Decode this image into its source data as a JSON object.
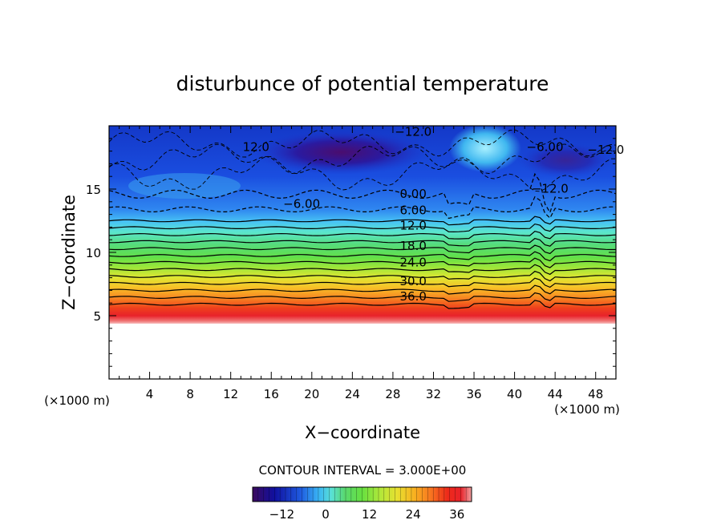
{
  "chart_data": {
    "type": "heatmap",
    "title": "disturbunce of potential temperature",
    "xlabel": "X−coordinate",
    "ylabel": "Z−coordinate",
    "x_unit": "(×1000 m)",
    "z_unit": "(×1000 m)",
    "xlim": [
      0,
      50
    ],
    "ylim": [
      0,
      20
    ],
    "x_ticks": [
      4,
      8,
      12,
      16,
      20,
      24,
      28,
      32,
      36,
      40,
      44,
      48
    ],
    "y_ticks": [
      5,
      10,
      15
    ],
    "contour_interval_text": "CONTOUR INTERVAL = 3.000E+00",
    "colorbar": {
      "range": [
        -20,
        40
      ],
      "ticks": [
        -12,
        0,
        12,
        24,
        36
      ],
      "colors": [
        "#3b0a5e",
        "#1010a0",
        "#1f5be0",
        "#39b4f4",
        "#59e0d6",
        "#59d870",
        "#66e040",
        "#b0e83a",
        "#e8e030",
        "#f8b020",
        "#f77020",
        "#ee2a1a",
        "#e8222a",
        "#f0a0a0"
      ]
    },
    "contour_labels": [
      {
        "x": 30.0,
        "z": 14.3,
        "text": "0.00"
      },
      {
        "x": 30.0,
        "z": 13.0,
        "text": "6.00"
      },
      {
        "x": 30.0,
        "z": 11.8,
        "text": "12.0"
      },
      {
        "x": 30.0,
        "z": 10.2,
        "text": "18.0"
      },
      {
        "x": 30.0,
        "z": 8.9,
        "text": "24.0"
      },
      {
        "x": 30.0,
        "z": 7.4,
        "text": "30.0"
      },
      {
        "x": 30.0,
        "z": 6.2,
        "text": "36.0"
      },
      {
        "x": 19.0,
        "z": 13.5,
        "text": "−6.00"
      },
      {
        "x": 43.0,
        "z": 18.0,
        "text": "−6.00"
      },
      {
        "x": 30.0,
        "z": 19.2,
        "text": "−12.0"
      },
      {
        "x": 14.5,
        "z": 18.0,
        "text": "12.0"
      },
      {
        "x": 43.5,
        "z": 14.7,
        "text": "−12.0"
      },
      {
        "x": 59.0,
        "z": 17.8,
        "text": "−12.0"
      }
    ]
  }
}
